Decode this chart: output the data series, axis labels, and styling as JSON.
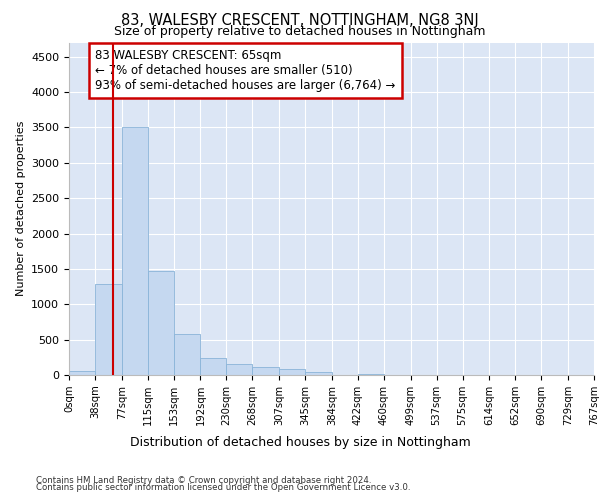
{
  "title": "83, WALESBY CRESCENT, NOTTINGHAM, NG8 3NJ",
  "subtitle": "Size of property relative to detached houses in Nottingham",
  "xlabel": "Distribution of detached houses by size in Nottingham",
  "ylabel": "Number of detached properties",
  "annotation_line1": "83 WALESBY CRESCENT: 65sqm",
  "annotation_line2": "← 7% of detached houses are smaller (510)",
  "annotation_line3": "93% of semi-detached houses are larger (6,764) →",
  "property_size_sqm": 65,
  "bin_edges": [
    0,
    38,
    77,
    115,
    153,
    192,
    230,
    268,
    307,
    345,
    384,
    422,
    460,
    499,
    537,
    575,
    614,
    652,
    690,
    729,
    767
  ],
  "bar_heights": [
    50,
    1280,
    3500,
    1470,
    580,
    240,
    150,
    120,
    80,
    40,
    0,
    20,
    0,
    0,
    0,
    0,
    0,
    0,
    0,
    0
  ],
  "bar_color": "#c5d8f0",
  "bar_edge_color": "#8ab4d8",
  "vline_color": "#cc0000",
  "vline_x": 65,
  "ylim": [
    0,
    4700
  ],
  "yticks": [
    0,
    500,
    1000,
    1500,
    2000,
    2500,
    3000,
    3500,
    4000,
    4500
  ],
  "plot_bg_color": "#dce6f5",
  "grid_color": "#ffffff",
  "annotation_box_facecolor": "#ffffff",
  "annotation_box_edgecolor": "#cc0000",
  "footer_line1": "Contains HM Land Registry data © Crown copyright and database right 2024.",
  "footer_line2": "Contains public sector information licensed under the Open Government Licence v3.0."
}
